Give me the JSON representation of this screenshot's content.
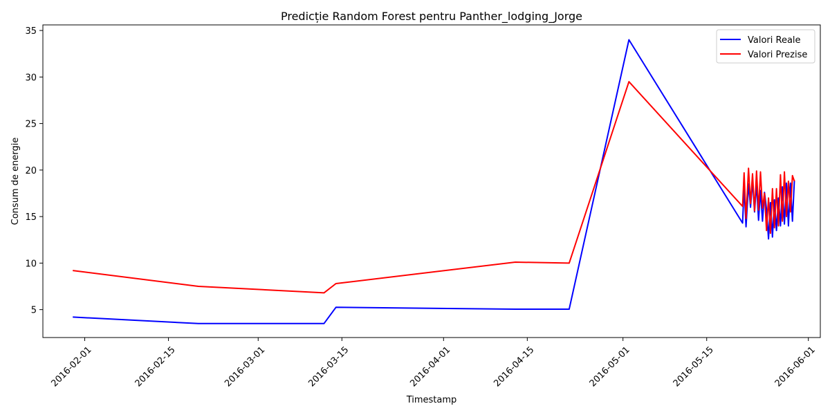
{
  "chart_data": {
    "type": "line",
    "title": "Predicție Random Forest pentru Panther_lodging_Jorge",
    "xlabel": "Timestamp",
    "ylabel": "Consum de energie",
    "xlim": [
      "2016-01-25",
      "2016-06-03"
    ],
    "ylim": [
      2,
      35.6
    ],
    "x_ticks": [
      "2016-02-01",
      "2016-02-15",
      "2016-03-01",
      "2016-03-15",
      "2016-04-01",
      "2016-04-15",
      "2016-05-01",
      "2016-05-15",
      "2016-06-01"
    ],
    "y_ticks": [
      5,
      10,
      15,
      20,
      25,
      30,
      35
    ],
    "grid": false,
    "legend_position": "top-right",
    "series": [
      {
        "name": "Valori Reale",
        "color": "#0000ff",
        "points": [
          [
            "2016-01-30",
            4.2
          ],
          [
            "2016-02-20",
            3.5
          ],
          [
            "2016-03-12",
            3.5
          ],
          [
            "2016-03-14",
            5.25
          ],
          [
            "2016-04-13",
            5.05
          ],
          [
            "2016-04-22",
            5.05
          ],
          [
            "2016-05-02",
            34.0
          ],
          [
            "2016-05-21",
            14.3
          ],
          [
            "2016-05-21T06:00",
            18.2
          ],
          [
            "2016-05-21T14:00",
            13.9
          ],
          [
            "2016-05-22T00:00",
            18.5
          ],
          [
            "2016-05-22T08:00",
            16.0
          ],
          [
            "2016-05-22T16:00",
            18.8
          ],
          [
            "2016-05-23T00:00",
            15.5
          ],
          [
            "2016-05-23T08:00",
            18.5
          ],
          [
            "2016-05-23T16:00",
            14.6
          ],
          [
            "2016-05-24T00:00",
            17.8
          ],
          [
            "2016-05-24T08:00",
            14.5
          ],
          [
            "2016-05-24T16:00",
            17.6
          ],
          [
            "2016-05-25T00:00",
            15.8
          ],
          [
            "2016-05-25T08:00",
            12.6
          ],
          [
            "2016-05-25T16:00",
            16.5
          ],
          [
            "2016-05-26T00:00",
            12.8
          ],
          [
            "2016-05-26T08:00",
            16.8
          ],
          [
            "2016-05-26T16:00",
            13.5
          ],
          [
            "2016-05-27T00:00",
            17.0
          ],
          [
            "2016-05-27T08:00",
            14.0
          ],
          [
            "2016-05-27T16:00",
            18.2
          ],
          [
            "2016-05-28T00:00",
            14.2
          ],
          [
            "2016-05-28T08:00",
            18.6
          ],
          [
            "2016-05-28T16:00",
            14.0
          ],
          [
            "2016-05-29T00:00",
            18.6
          ],
          [
            "2016-05-29T08:00",
            14.5
          ],
          [
            "2016-05-29T16:00",
            18.9
          ]
        ]
      },
      {
        "name": "Valori Prezise",
        "color": "#ff0000",
        "points": [
          [
            "2016-01-30",
            9.2
          ],
          [
            "2016-02-20",
            7.5
          ],
          [
            "2016-03-12",
            6.8
          ],
          [
            "2016-03-14",
            7.8
          ],
          [
            "2016-04-13",
            10.1
          ],
          [
            "2016-04-22",
            10.0
          ],
          [
            "2016-05-02",
            29.5
          ],
          [
            "2016-05-21",
            16.1
          ],
          [
            "2016-05-21T06:00",
            19.7
          ],
          [
            "2016-05-21T14:00",
            14.8
          ],
          [
            "2016-05-22T00:00",
            20.2
          ],
          [
            "2016-05-22T08:00",
            16.4
          ],
          [
            "2016-05-22T16:00",
            19.6
          ],
          [
            "2016-05-23T00:00",
            15.6
          ],
          [
            "2016-05-23T08:00",
            19.9
          ],
          [
            "2016-05-23T16:00",
            15.7
          ],
          [
            "2016-05-24T00:00",
            19.8
          ],
          [
            "2016-05-24T08:00",
            15.9
          ],
          [
            "2016-05-24T16:00",
            17.5
          ],
          [
            "2016-05-25T00:00",
            13.5
          ],
          [
            "2016-05-25T08:00",
            17.0
          ],
          [
            "2016-05-25T16:00",
            13.2
          ],
          [
            "2016-05-26T00:00",
            18.0
          ],
          [
            "2016-05-26T08:00",
            13.8
          ],
          [
            "2016-05-26T16:00",
            18.0
          ],
          [
            "2016-05-27T00:00",
            14.0
          ],
          [
            "2016-05-27T08:00",
            19.5
          ],
          [
            "2016-05-27T16:00",
            14.5
          ],
          [
            "2016-05-28T00:00",
            19.8
          ],
          [
            "2016-05-28T08:00",
            15.0
          ],
          [
            "2016-05-28T16:00",
            18.8
          ],
          [
            "2016-05-29T00:00",
            15.5
          ],
          [
            "2016-05-29T08:00",
            19.4
          ],
          [
            "2016-05-29T16:00",
            18.8
          ]
        ]
      }
    ]
  }
}
